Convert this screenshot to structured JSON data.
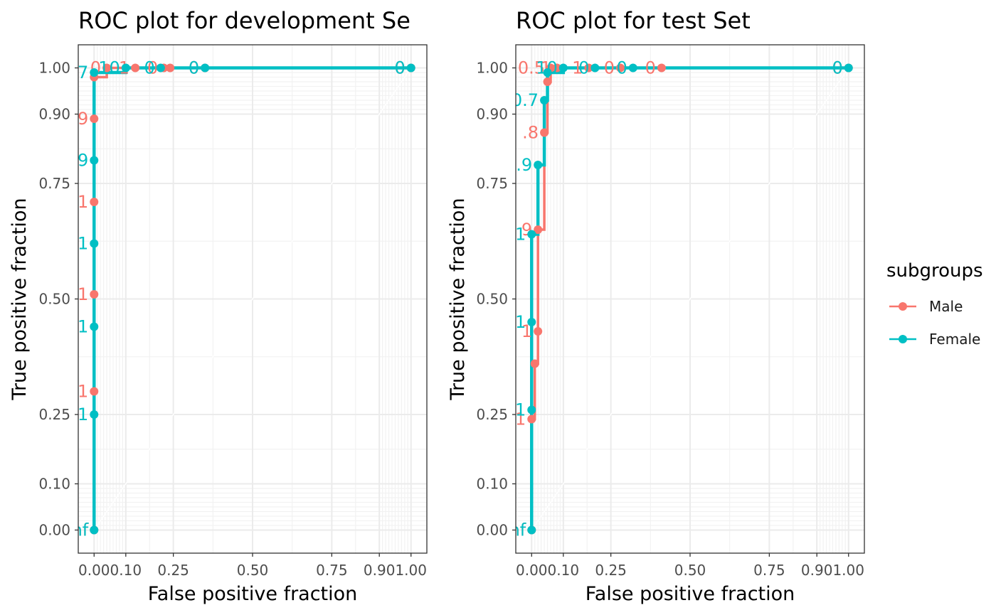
{
  "colors": {
    "male": "#F8766D",
    "female": "#00BFC4",
    "grid_major": "#EBEBEB",
    "grid_minor": "#F2F2F2",
    "panel_border": "#333333"
  },
  "legend": {
    "title": "subgroups",
    "items": [
      {
        "label": "Male",
        "color": "#F8766D"
      },
      {
        "label": "Female",
        "color": "#00BFC4"
      }
    ]
  },
  "chart_data": [
    {
      "type": "line",
      "title": "ROC plot for development Se",
      "xlabel": "False positive fraction",
      "ylabel": "True positive fraction",
      "xlim": [
        -0.05,
        1.05
      ],
      "ylim": [
        -0.05,
        1.05
      ],
      "x_tick_labels": [
        "0.00",
        "0.10",
        "0.25",
        "0.50",
        "0.75",
        "0.90",
        "1.00"
      ],
      "y_tick_labels": [
        "0.00",
        "0.10",
        "0.25",
        "0.50",
        "0.75",
        "0.90",
        "1.00"
      ],
      "grid": true,
      "series": [
        {
          "name": "Male",
          "points": [
            [
              0,
              0
            ],
            [
              0,
              0.3
            ],
            [
              0,
              0.51
            ],
            [
              0,
              0.71
            ],
            [
              0,
              0.89
            ],
            [
              0,
              0.98
            ],
            [
              0.04,
              1.0
            ],
            [
              0.13,
              1.0
            ],
            [
              0.22,
              1.0
            ],
            [
              0.24,
              1.0
            ],
            [
              0.35,
              1.0
            ],
            [
              1.0,
              1.0
            ]
          ],
          "threshold_labels": [
            "nf",
            "1",
            "1",
            "1",
            "9",
            "",
            "0",
            "1",
            "0",
            "",
            "0",
            "0"
          ]
        },
        {
          "name": "Female",
          "points": [
            [
              0,
              0
            ],
            [
              0,
              0.25
            ],
            [
              0,
              0.44
            ],
            [
              0,
              0.62
            ],
            [
              0,
              0.8
            ],
            [
              0,
              0.99
            ],
            [
              0.1,
              1.0
            ],
            [
              0.21,
              1.0
            ],
            [
              0.35,
              1.0
            ],
            [
              1.0,
              1.0
            ]
          ],
          "threshold_labels": [
            "nf",
            "1",
            "1",
            "1",
            "9",
            "7",
            "10",
            "0",
            "0",
            "0"
          ]
        }
      ]
    },
    {
      "type": "line",
      "title": "ROC plot for test Set",
      "xlabel": "False positive fraction",
      "ylabel": "True positive fraction",
      "xlim": [
        -0.05,
        1.05
      ],
      "ylim": [
        -0.05,
        1.05
      ],
      "x_tick_labels": [
        "0.00",
        "0.10",
        "0.25",
        "0.50",
        "0.75",
        "0.90",
        "1.00"
      ],
      "y_tick_labels": [
        "0.00",
        "0.10",
        "0.25",
        "0.50",
        "0.75",
        "0.90",
        "1.00"
      ],
      "grid": true,
      "series": [
        {
          "name": "Male",
          "points": [
            [
              0,
              0
            ],
            [
              0,
              0.24
            ],
            [
              0.01,
              0.36
            ],
            [
              0.02,
              0.43
            ],
            [
              0.02,
              0.65
            ],
            [
              0.04,
              0.86
            ],
            [
              0.05,
              0.97
            ],
            [
              0.06,
              1.0
            ],
            [
              0.08,
              1.0
            ],
            [
              0.18,
              1.0
            ],
            [
              0.28,
              1.0
            ],
            [
              0.41,
              1.0
            ],
            [
              1.0,
              1.0
            ]
          ],
          "threshold_labels": [
            "nf",
            "1",
            "",
            "1",
            "9",
            ".8",
            "",
            "0.5",
            "1",
            "1",
            "0",
            "0",
            "0"
          ]
        },
        {
          "name": "Female",
          "points": [
            [
              0,
              0
            ],
            [
              0,
              0.26
            ],
            [
              0,
              0.45
            ],
            [
              0,
              0.64
            ],
            [
              0.02,
              0.79
            ],
            [
              0.04,
              0.93
            ],
            [
              0.05,
              0.99
            ],
            [
              0.1,
              1.0
            ],
            [
              0.2,
              1.0
            ],
            [
              0.32,
              1.0
            ],
            [
              1.0,
              1.0
            ]
          ],
          "threshold_labels": [
            "nf",
            "1",
            "1",
            "1",
            ".9",
            "0.7",
            "",
            "10",
            "0",
            "0",
            "0"
          ]
        }
      ]
    }
  ]
}
